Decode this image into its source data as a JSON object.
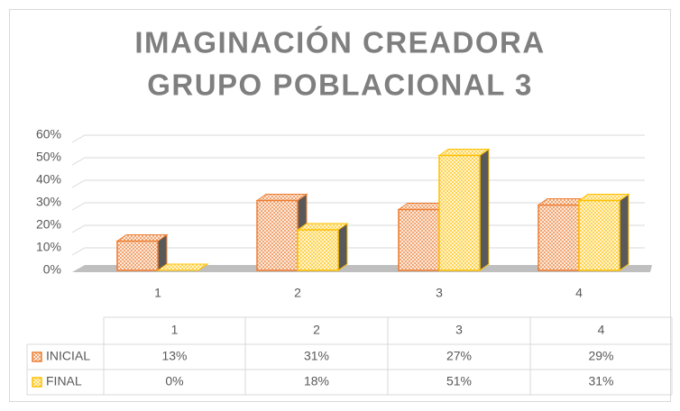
{
  "chart_data": {
    "type": "bar3d",
    "title": [
      "IMAGINACIÓN CREADORA",
      "GRUPO POBLACIONAL 3"
    ],
    "categories": [
      "1",
      "2",
      "3",
      "4"
    ],
    "series": [
      {
        "name": "INICIAL",
        "color": "#ed7d31",
        "values": [
          13,
          31,
          27,
          29
        ],
        "value_labels": [
          "13%",
          "31%",
          "27%",
          "29%"
        ]
      },
      {
        "name": "FINAL",
        "color": "#ffc000",
        "values": [
          0,
          18,
          51,
          31
        ],
        "value_labels": [
          "0%",
          "18%",
          "51%",
          "31%"
        ]
      }
    ],
    "ylim": [
      0,
      60
    ],
    "yticks": [
      {
        "value": 0,
        "label": "0%"
      },
      {
        "value": 10,
        "label": "10%"
      },
      {
        "value": 20,
        "label": "20%"
      },
      {
        "value": 30,
        "label": "30%"
      },
      {
        "value": 40,
        "label": "40%"
      },
      {
        "value": 50,
        "label": "50%"
      },
      {
        "value": 60,
        "label": "60%"
      }
    ],
    "grid": true
  }
}
